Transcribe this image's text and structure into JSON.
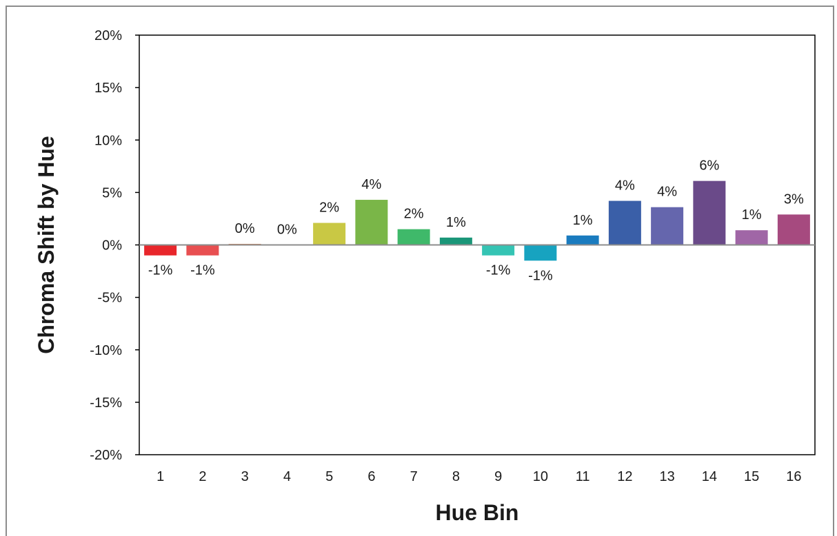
{
  "chart_data": {
    "type": "bar",
    "title": "",
    "xlabel": "Hue Bin",
    "ylabel": "Chroma Shift by Hue",
    "ylim": [
      -20,
      20
    ],
    "y_ticks": [
      20,
      15,
      10,
      5,
      0,
      -5,
      -10,
      -15,
      -20
    ],
    "y_tick_labels": [
      "20%",
      "15%",
      "10%",
      "5%",
      "0%",
      "-5%",
      "-10%",
      "-15%",
      "-20%"
    ],
    "categories": [
      "1",
      "2",
      "3",
      "4",
      "5",
      "6",
      "7",
      "8",
      "9",
      "10",
      "11",
      "12",
      "13",
      "14",
      "15",
      "16"
    ],
    "values": [
      -1.0,
      -1.0,
      0.1,
      0.0,
      2.1,
      4.3,
      1.5,
      0.7,
      -1.0,
      -1.5,
      0.9,
      4.2,
      3.6,
      6.1,
      1.4,
      2.9
    ],
    "data_labels": [
      "-1%",
      "-1%",
      "0%",
      "0%",
      "2%",
      "4%",
      "2%",
      "1%",
      "-1%",
      "-1%",
      "1%",
      "4%",
      "4%",
      "6%",
      "1%",
      "3%"
    ],
    "colors": [
      "#e8262b",
      "#e84f51",
      "#dd8a5b",
      "#d6b85a",
      "#c9c844",
      "#7ab648",
      "#3fb96a",
      "#1a9678",
      "#35c4b4",
      "#17a3c0",
      "#1a7bbf",
      "#3a5fa8",
      "#6566ad",
      "#6a4a89",
      "#a066a6",
      "#a64a7f"
    ],
    "grid": false,
    "legend": "none"
  }
}
